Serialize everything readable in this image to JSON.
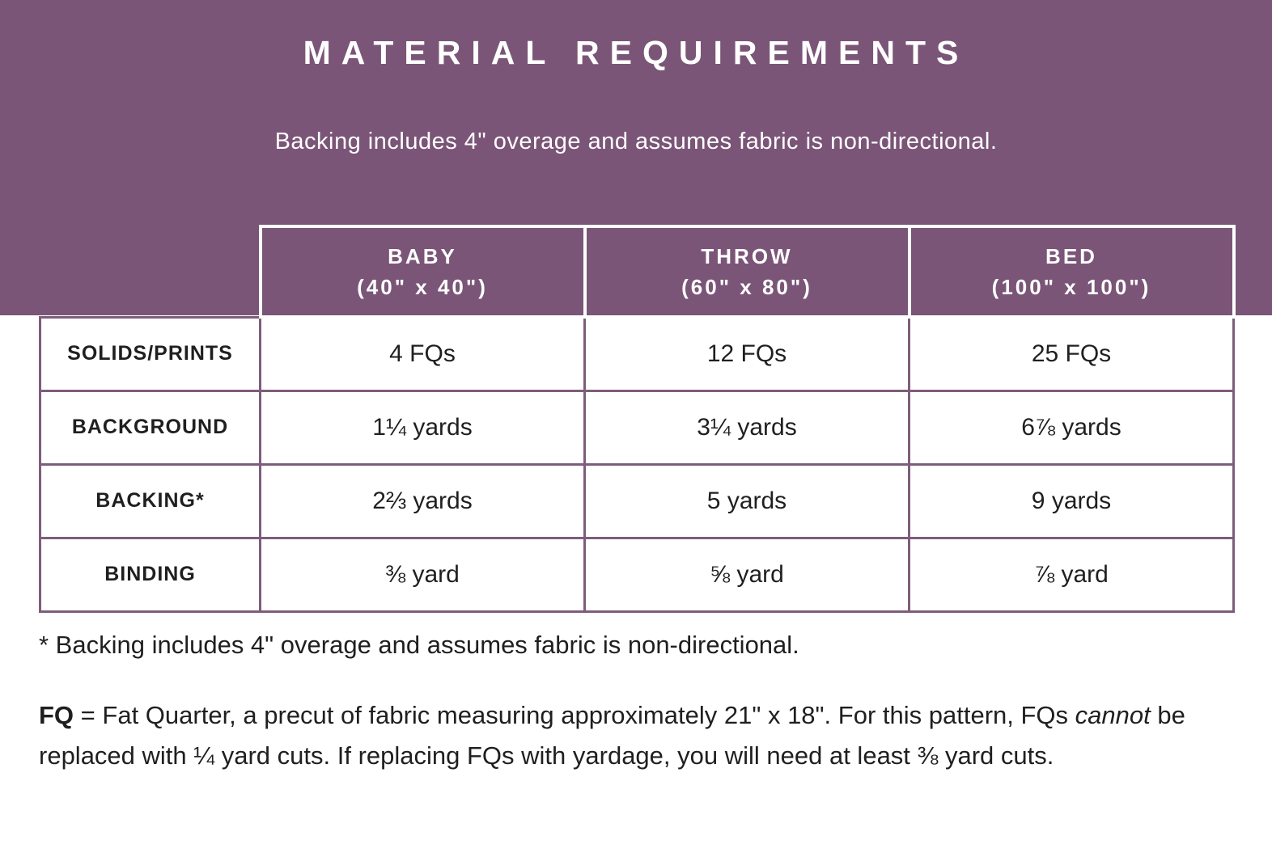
{
  "colors": {
    "banner_purple": "#7a5577",
    "table_border_purple": "#7e5d7b",
    "header_border_white": "#ffffff",
    "text_dark": "#1f1f1f",
    "text_white": "#ffffff"
  },
  "header": {
    "title": "MATERIAL REQUIREMENTS",
    "subtitle": "Backing includes 4\" overage and assumes fabric is non-directional."
  },
  "table": {
    "columns": [
      {
        "name": "BABY",
        "size": "(40\" x 40\")"
      },
      {
        "name": "THROW",
        "size": "(60\" x 80\")"
      },
      {
        "name": "BED",
        "size": "(100\" x 100\")"
      }
    ],
    "rows": [
      {
        "label": "SOLIDS/PRINTS",
        "values": [
          "4 FQs",
          "12 FQs",
          "25 FQs"
        ]
      },
      {
        "label": "BACKGROUND",
        "values": [
          "1¼ yards",
          "3¼ yards",
          "6⅞ yards"
        ]
      },
      {
        "label": "BACKING*",
        "values": [
          "2⅔ yards",
          "5 yards",
          "9 yards"
        ]
      },
      {
        "label": "BINDING",
        "values": [
          "⅜ yard",
          "⅝ yard",
          "⅞ yard"
        ]
      }
    ]
  },
  "notes": {
    "backing_note": "* Backing includes 4\" overage and assumes fabric is non-directional.",
    "fq_bold": "FQ",
    "fq_text_1": " = Fat Quarter, a precut of fabric measuring approximately 21\" x 18\". For this pattern, FQs ",
    "fq_italic": "cannot",
    "fq_text_2": " be replaced with ¼ yard cuts. If replacing FQs with yardage, you will need at least ⅜ yard cuts."
  }
}
